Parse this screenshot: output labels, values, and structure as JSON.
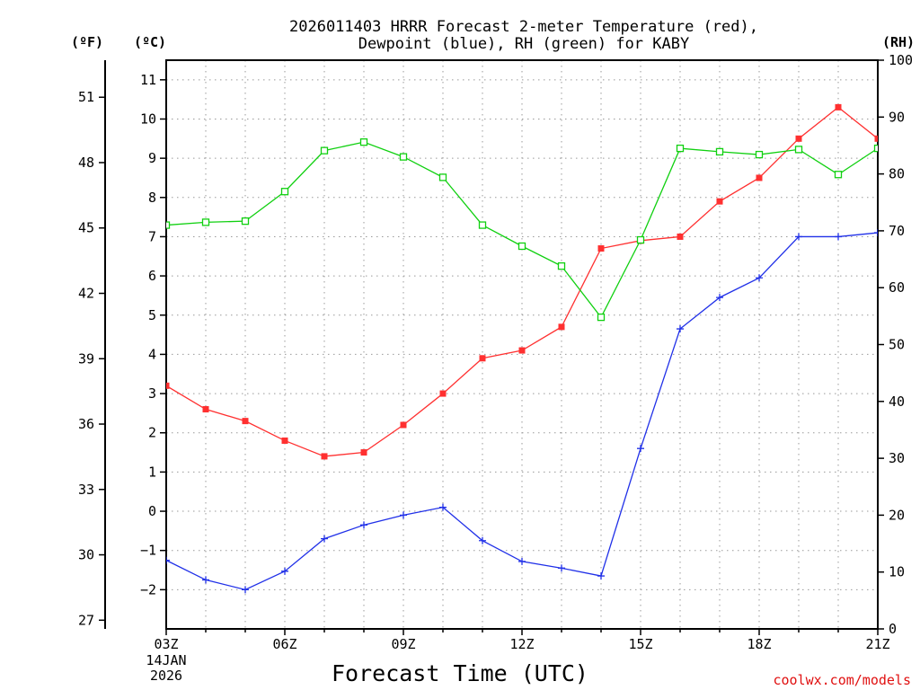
{
  "colors": {
    "temperature": "#ff3030",
    "dewpoint": "#2030e8",
    "rh": "#10d010",
    "grid": "#999999",
    "credit": "#e01010"
  },
  "chart_data": {
    "type": "line",
    "title_line1": "2026011403 HRRR Forecast 2-meter Temperature (red),",
    "title_line2": "Dewpoint (blue), RH (green) for KABY",
    "xlabel": "Forecast Time (UTC)",
    "date_label": [
      "14JAN",
      "2026"
    ],
    "credit": "coolwx.com/models",
    "units": {
      "fahrenheit": "(ºF)",
      "celsius": "(ºC)",
      "rh": "(RH)"
    },
    "x": [
      "03Z",
      "04Z",
      "05Z",
      "06Z",
      "07Z",
      "08Z",
      "09Z",
      "10Z",
      "11Z",
      "12Z",
      "13Z",
      "14Z",
      "15Z",
      "16Z",
      "17Z",
      "18Z",
      "19Z",
      "20Z",
      "21Z"
    ],
    "x_tick_labels": [
      "03Z",
      "06Z",
      "09Z",
      "12Z",
      "15Z",
      "18Z",
      "21Z"
    ],
    "celsius_axis": {
      "range": [
        -3,
        11.5
      ],
      "ticks": [
        -2,
        -1,
        0,
        1,
        2,
        3,
        4,
        5,
        6,
        7,
        8,
        9,
        10,
        11
      ]
    },
    "fahrenheit_axis": {
      "ticks": [
        27,
        30,
        33,
        36,
        39,
        42,
        45,
        48,
        51
      ]
    },
    "rh_axis": {
      "range": [
        0,
        100
      ],
      "ticks": [
        0,
        10,
        20,
        30,
        40,
        50,
        60,
        70,
        80,
        90,
        100
      ]
    },
    "grid": true,
    "series": [
      {
        "name": "Temperature",
        "axis": "celsius",
        "marker": "filled-square",
        "values": [
          3.2,
          2.6,
          2.3,
          1.8,
          1.4,
          1.5,
          2.2,
          3.0,
          3.9,
          4.1,
          4.7,
          6.7,
          6.9,
          7.0,
          7.9,
          8.5,
          9.5,
          10.3,
          9.5
        ]
      },
      {
        "name": "Dewpoint",
        "axis": "celsius",
        "marker": "plus",
        "values": [
          -1.25,
          -1.75,
          -2.0,
          -1.53,
          -0.7,
          -0.35,
          -0.1,
          0.1,
          -0.75,
          -1.28,
          -1.45,
          -1.65,
          1.6,
          4.65,
          5.45,
          5.95,
          7.0,
          7.0,
          7.1
        ]
      },
      {
        "name": "RH",
        "axis": "rh",
        "marker": "open-square",
        "values": [
          71.0,
          71.5,
          71.7,
          76.9,
          84.1,
          85.6,
          83.0,
          79.4,
          71.0,
          67.3,
          63.8,
          54.8,
          68.4,
          84.5,
          83.9,
          83.4,
          84.3,
          79.9,
          84.5
        ]
      }
    ]
  }
}
